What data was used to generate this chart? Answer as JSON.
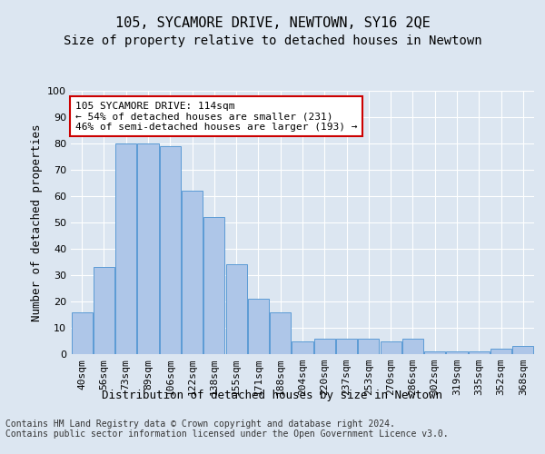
{
  "title": "105, SYCAMORE DRIVE, NEWTOWN, SY16 2QE",
  "subtitle": "Size of property relative to detached houses in Newtown",
  "xlabel_bottom": "Distribution of detached houses by size in Newtown",
  "ylabel": "Number of detached properties",
  "categories": [
    "40sqm",
    "56sqm",
    "73sqm",
    "89sqm",
    "106sqm",
    "122sqm",
    "138sqm",
    "155sqm",
    "171sqm",
    "188sqm",
    "204sqm",
    "220sqm",
    "237sqm",
    "253sqm",
    "270sqm",
    "286sqm",
    "302sqm",
    "319sqm",
    "335sqm",
    "352sqm",
    "368sqm"
  ],
  "values": [
    16,
    33,
    80,
    80,
    79,
    62,
    52,
    34,
    21,
    16,
    5,
    6,
    6,
    6,
    5,
    6,
    1,
    1,
    1,
    2,
    3
  ],
  "bar_color": "#aec6e8",
  "bar_edge_color": "#5b9bd5",
  "annotation_box_text": "105 SYCAMORE DRIVE: 114sqm\n← 54% of detached houses are smaller (231)\n46% of semi-detached houses are larger (193) →",
  "annotation_box_edge_color": "#cc0000",
  "annotation_box_face_color": "#ffffff",
  "ylim": [
    0,
    100
  ],
  "yticks": [
    0,
    10,
    20,
    30,
    40,
    50,
    60,
    70,
    80,
    90,
    100
  ],
  "background_color": "#dce6f1",
  "plot_bg_color": "#dce6f1",
  "grid_color": "#ffffff",
  "footer_text": "Contains HM Land Registry data © Crown copyright and database right 2024.\nContains public sector information licensed under the Open Government Licence v3.0.",
  "title_fontsize": 11,
  "subtitle_fontsize": 10,
  "ylabel_fontsize": 9,
  "tick_fontsize": 8,
  "annotation_fontsize": 8,
  "footer_fontsize": 7,
  "xlabel_bottom_fontsize": 9
}
